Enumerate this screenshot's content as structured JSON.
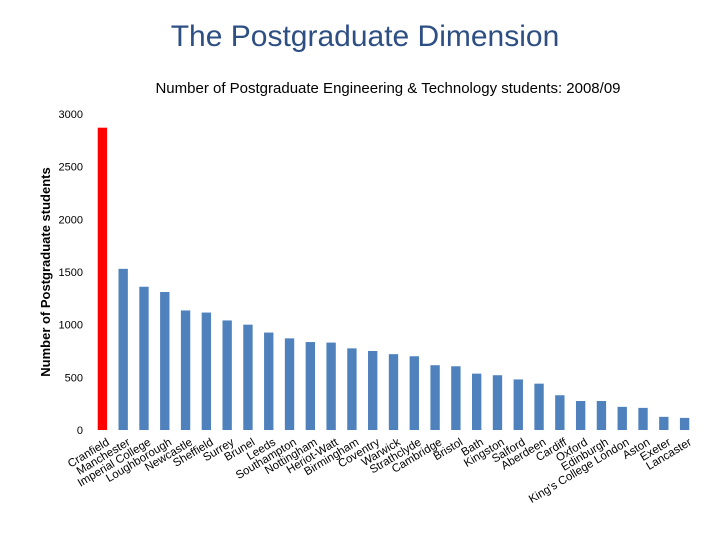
{
  "slide": {
    "title": "The Postgraduate Dimension"
  },
  "colors": {
    "bar": "#4f81bd",
    "highlight": "#ff0000",
    "title": "#2e4f84"
  },
  "chart_data": {
    "type": "bar",
    "title": "Number of Postgraduate Engineering & Technology students: 2008/09",
    "xlabel": "",
    "ylabel": "Number of Postgraduate students",
    "ylim": [
      0,
      3000
    ],
    "yticks": [
      "0",
      "500",
      "1000",
      "1500",
      "2000",
      "2500",
      "3000"
    ],
    "ytick_values": [
      0,
      500,
      1000,
      1500,
      2000,
      2500,
      3000
    ],
    "highlight_index": 0,
    "categories": [
      "Cranfield",
      "Manchester",
      "Imperial College",
      "Loughborough",
      "Newcastle",
      "Sheffield",
      "Surrey",
      "Brunel",
      "Leeds",
      "Southampton",
      "Nottingham",
      "Heriot-Watt",
      "Birmingham",
      "Coventry",
      "Warwick",
      "Strathclyde",
      "Cambridge",
      "Bristol",
      "Bath",
      "Kingston",
      "Salford",
      "Aberdeen",
      "Cardiff",
      "Oxford",
      "Edinburgh",
      "King's College London",
      "Aston",
      "Exeter",
      "Lancaster"
    ],
    "values": [
      2870,
      1530,
      1360,
      1310,
      1135,
      1115,
      1040,
      1000,
      925,
      870,
      835,
      830,
      775,
      750,
      720,
      700,
      615,
      605,
      535,
      520,
      480,
      440,
      330,
      275,
      275,
      220,
      210,
      125,
      115
    ]
  }
}
